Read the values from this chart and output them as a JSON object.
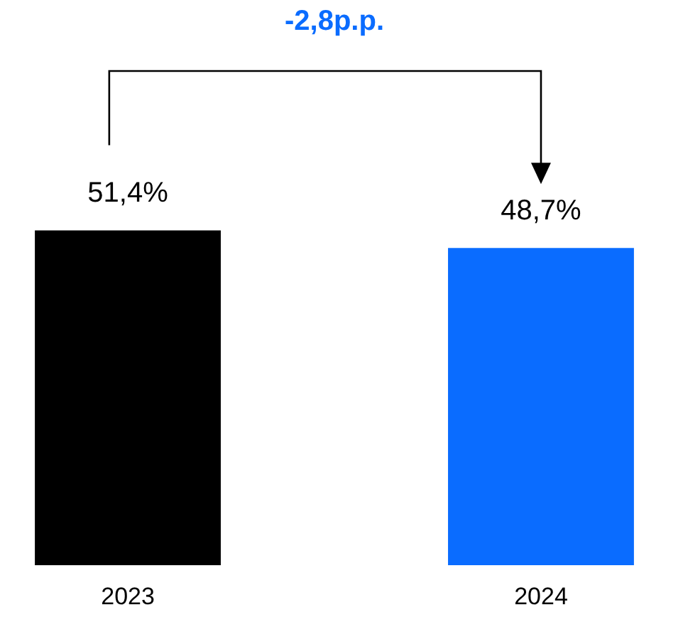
{
  "chart_data": {
    "type": "bar",
    "categories": [
      "2023",
      "2024"
    ],
    "values": [
      51.4,
      48.7
    ],
    "colors": [
      "#000000",
      "#0a6cff"
    ],
    "value_labels": [
      "51,4%",
      "48,7%"
    ],
    "annotations": [
      "-2,8p.p."
    ]
  }
}
